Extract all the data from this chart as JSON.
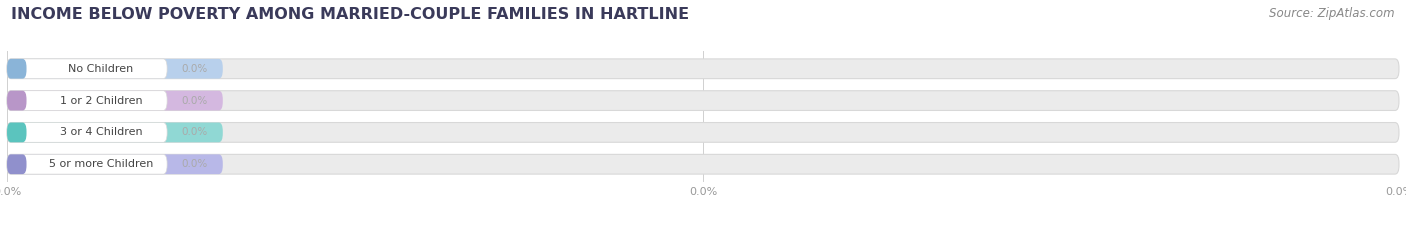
{
  "title": "INCOME BELOW POVERTY AMONG MARRIED-COUPLE FAMILIES IN HARTLINE",
  "source": "Source: ZipAtlas.com",
  "categories": [
    "No Children",
    "1 or 2 Children",
    "3 or 4 Children",
    "5 or more Children"
  ],
  "values": [
    0.0,
    0.0,
    0.0,
    0.0
  ],
  "bar_colors": [
    "#8ab4d8",
    "#b896c8",
    "#5bc4be",
    "#9090cc"
  ],
  "value_pill_colors": [
    "#b8d0ec",
    "#d4b8e0",
    "#90d8d4",
    "#b8b8e8"
  ],
  "label_area_color": "#ffffff",
  "background_color": "#ffffff",
  "bar_bg_color": "#ebebeb",
  "bar_bg_edge_color": "#d8d8d8",
  "title_fontsize": 11.5,
  "source_fontsize": 8.5,
  "figsize": [
    14.06,
    2.33
  ],
  "dpi": 100,
  "grid_color": "#d0d0d0"
}
